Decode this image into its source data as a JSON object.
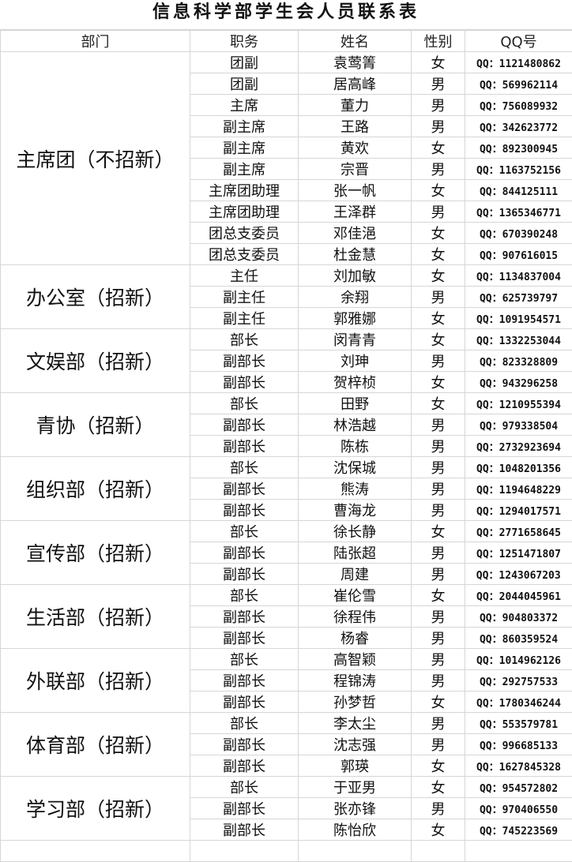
{
  "title": "信息科学部学生会人员联系表",
  "headers": [
    "部门",
    "职务",
    "姓名",
    "性别",
    "QQ号"
  ],
  "groups": [
    {
      "dept": "主席团（不招新）",
      "rows": [
        [
          "团副",
          "袁莺箐",
          "女",
          "QQ：1121480862"
        ],
        [
          "团副",
          "居高峰",
          "男",
          "QQ：569962114"
        ],
        [
          "主席",
          "董力",
          "男",
          "QQ：756089932"
        ],
        [
          "副主席",
          "王路",
          "男",
          "QQ：342623772"
        ],
        [
          "副主席",
          "黄欢",
          "女",
          "QQ：892300945"
        ],
        [
          "副主席",
          "宗晋",
          "男",
          "QQ：1163752156"
        ],
        [
          "主席团助理",
          "张一帆",
          "女",
          "QQ：844125111"
        ],
        [
          "主席团助理",
          "王泽群",
          "男",
          "QQ：1365346771"
        ],
        [
          "团总支委员",
          "邓佳浥",
          "女",
          "QQ：670390248"
        ],
        [
          "团总支委员",
          "杜金慧",
          "女",
          "QQ：907616015"
        ]
      ]
    },
    {
      "dept": "办公室（招新）",
      "rows": [
        [
          "主任",
          "刘加敏",
          "女",
          "QQ：1134837004"
        ],
        [
          "副主任",
          "余翔",
          "男",
          "QQ：625739797"
        ],
        [
          "副主任",
          "郭雅娜",
          "女",
          "QQ：1091954571"
        ]
      ]
    },
    {
      "dept": "文娱部（招新）",
      "rows": [
        [
          "部长",
          "闵青青",
          "女",
          "QQ：1332253044"
        ],
        [
          "副部长",
          "刘珅",
          "男",
          "QQ：823328809"
        ],
        [
          "副部长",
          "贺梓桢",
          "女",
          "QQ：943296258"
        ]
      ]
    },
    {
      "dept": "青协（招新）",
      "rows": [
        [
          "部长",
          "田野",
          "女",
          "QQ：1210955394"
        ],
        [
          "副部长",
          "林浩越",
          "男",
          "QQ：979338504"
        ],
        [
          "副部长",
          "陈栋",
          "男",
          "QQ：2732923694"
        ]
      ]
    },
    {
      "dept": "组织部（招新）",
      "rows": [
        [
          "部长",
          "沈保城",
          "男",
          "QQ：1048201356"
        ],
        [
          "副部长",
          "熊涛",
          "男",
          "QQ：1194648229"
        ],
        [
          "副部长",
          "曹海龙",
          "男",
          "QQ：1294017571"
        ]
      ]
    },
    {
      "dept": "宣传部（招新）",
      "rows": [
        [
          "部长",
          "徐长静",
          "女",
          "QQ：2771658645"
        ],
        [
          "副部长",
          "陆张超",
          "男",
          "QQ：1251471807"
        ],
        [
          "副部长",
          "周建",
          "男",
          "QQ：1243067203"
        ]
      ]
    },
    {
      "dept": "生活部（招新）",
      "rows": [
        [
          "部长",
          "崔伦雪",
          "女",
          "QQ：2044045961"
        ],
        [
          "副部长",
          "徐程伟",
          "男",
          "QQ：904803372"
        ],
        [
          "副部长",
          "杨睿",
          "男",
          "QQ：860359524"
        ]
      ]
    },
    {
      "dept": "外联部（招新）",
      "rows": [
        [
          "部长",
          "高智颖",
          "男",
          "QQ：1014962126"
        ],
        [
          "副部长",
          "程锦涛",
          "男",
          "QQ：292757533"
        ],
        [
          "副部长",
          "孙梦哲",
          "女",
          "QQ：1780346244"
        ]
      ]
    },
    {
      "dept": "体育部（招新）",
      "rows": [
        [
          "部长",
          "李太尘",
          "男",
          "QQ：553579781"
        ],
        [
          "副部长",
          "沈志强",
          "男",
          "QQ：996685133"
        ],
        [
          "副部长",
          "郭瑛",
          "女",
          "QQ：1627845328"
        ]
      ]
    },
    {
      "dept": "学习部（招新）",
      "rows": [
        [
          "部长",
          "于亚男",
          "女",
          "QQ：954572802"
        ],
        [
          "副部长",
          "张亦锋",
          "男",
          "QQ：970406550"
        ],
        [
          "副部长",
          "陈怡欣",
          "女",
          "QQ：745223569"
        ]
      ]
    }
  ]
}
